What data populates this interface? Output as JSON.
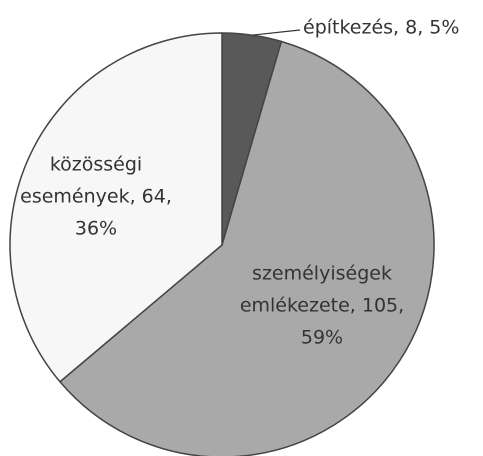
{
  "chart_data": {
    "type": "pie",
    "values": [
      8,
      105,
      64
    ],
    "colors": [
      "#595959",
      "#a9a9a9",
      "#f7f7f7"
    ],
    "data_labels": [
      [
        "építkezés, 8, 5%"
      ],
      [
        "személyiségek",
        "emlékezete, 105,",
        "59%"
      ],
      [
        "közösségi",
        "események, 64,",
        "36%"
      ]
    ]
  }
}
